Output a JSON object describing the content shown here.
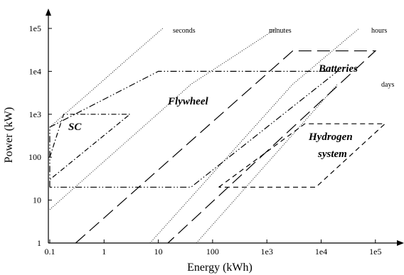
{
  "chart_data": {
    "type": "line",
    "title": "",
    "xlabel": "Energy (kWh)",
    "ylabel": "Power (kW)",
    "x_scale": "log",
    "y_scale": "log",
    "xlim": [
      0.1,
      200000
    ],
    "ylim": [
      1,
      200000
    ],
    "grid": false,
    "x_ticks": [
      {
        "value": 0.1,
        "label": "0.1"
      },
      {
        "value": 1,
        "label": "1"
      },
      {
        "value": 10,
        "label": "10"
      },
      {
        "value": 100,
        "label": "100"
      },
      {
        "value": 1000,
        "label": "1e3"
      },
      {
        "value": 10000,
        "label": "1e4"
      },
      {
        "value": 100000,
        "label": "1e5"
      }
    ],
    "y_ticks": [
      {
        "value": 1,
        "label": "1"
      },
      {
        "value": 10,
        "label": "10"
      },
      {
        "value": 100,
        "label": "100"
      },
      {
        "value": 1000,
        "label": "1e3"
      },
      {
        "value": 10000,
        "label": "1e4"
      },
      {
        "value": 100000,
        "label": "1e5"
      }
    ],
    "time_lines": [
      {
        "label": "seconds",
        "points": [
          [
            0.1,
            500
          ],
          [
            12,
            100000
          ]
        ]
      },
      {
        "label": "minutes",
        "points": [
          [
            0.1,
            6
          ],
          [
            40,
            5000
          ],
          [
            1500,
            100000
          ]
        ]
      },
      {
        "label": "hours",
        "points": [
          [
            7,
            1
          ],
          [
            3000,
            5000
          ],
          [
            50000,
            100000
          ]
        ]
      },
      {
        "label": "days",
        "points": [
          [
            50,
            1
          ],
          [
            20000,
            5000
          ]
        ]
      }
    ],
    "regions": [
      {
        "label": "SC",
        "style": "dash-dot",
        "outline": [
          [
            0.1,
            100
          ],
          [
            0.18,
            1000
          ],
          [
            3,
            1000
          ],
          [
            0.1,
            30
          ]
        ]
      },
      {
        "label": "Flywheel",
        "style": "dash-dot-dot",
        "outline": [
          [
            0.1,
            20
          ],
          [
            0.1,
            500
          ],
          [
            10,
            10000
          ],
          [
            20000,
            10000
          ],
          [
            40,
            20
          ],
          [
            0.1,
            20
          ]
        ]
      },
      {
        "label": "Batteries",
        "style": "long-dash",
        "outline": [
          [
            0.3,
            1
          ],
          [
            3000,
            30000
          ],
          [
            100000,
            30000
          ],
          [
            15,
            1
          ]
        ]
      },
      {
        "label": "Hydrogen system",
        "style": "dash",
        "outline": [
          [
            130,
            20
          ],
          [
            5000,
            600
          ],
          [
            150000,
            600
          ],
          [
            8000,
            20
          ],
          [
            130,
            20
          ]
        ]
      }
    ]
  }
}
